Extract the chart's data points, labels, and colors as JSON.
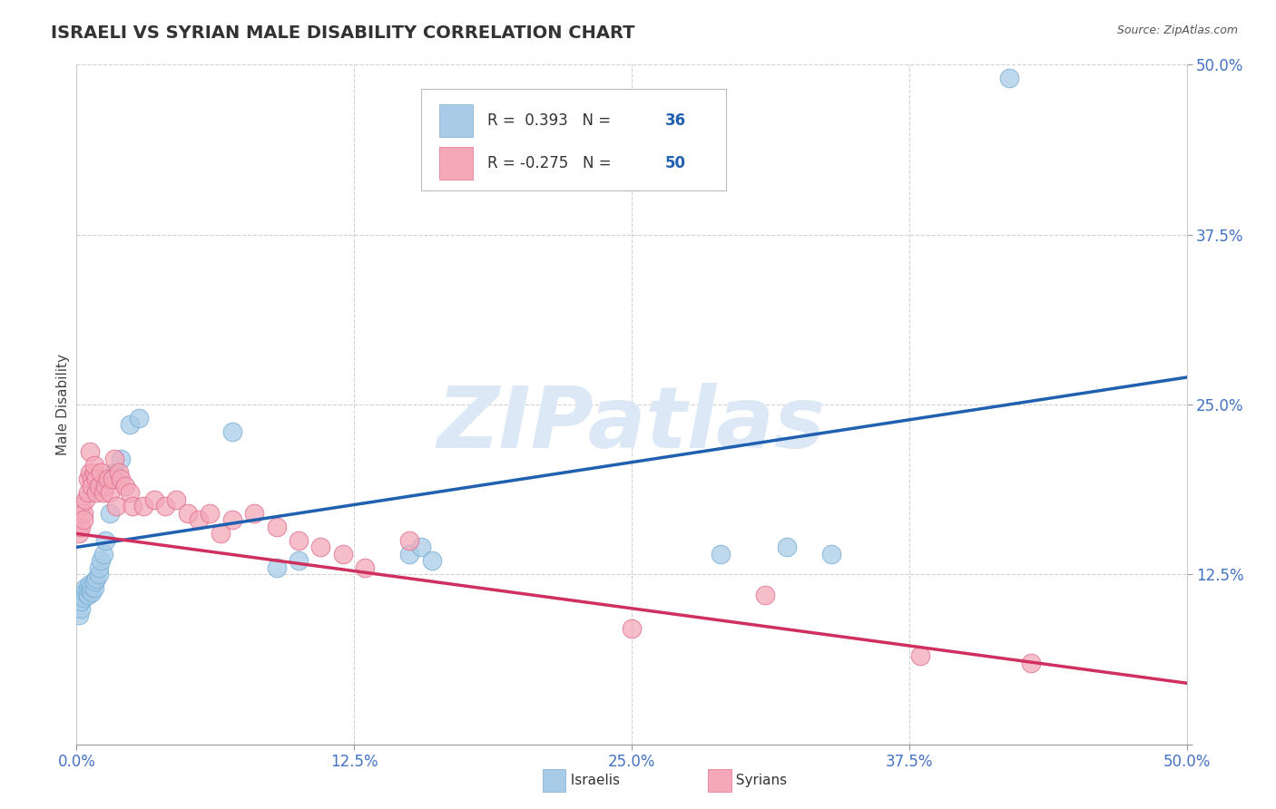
{
  "title": "ISRAELI VS SYRIAN MALE DISABILITY CORRELATION CHART",
  "source": "Source: ZipAtlas.com",
  "ylabel": "Male Disability",
  "xlim": [
    0.0,
    0.5
  ],
  "ylim": [
    0.0,
    0.5
  ],
  "ytick_positions": [
    0.0,
    0.125,
    0.25,
    0.375,
    0.5
  ],
  "xtick_positions": [
    0.0,
    0.125,
    0.25,
    0.375,
    0.5
  ],
  "R_israeli": 0.393,
  "N_israeli": 36,
  "R_syrian": -0.275,
  "N_syrian": 50,
  "israeli_color": "#a8cce8",
  "israeli_edge_color": "#7aaed4",
  "syrian_color": "#f4a8b8",
  "syrian_edge_color": "#e07090",
  "trendline_israeli_color": "#2060b0",
  "trendline_syrian_color": "#d03060",
  "background_color": "#ffffff",
  "watermark_text": "ZIPatlas",
  "watermark_color": "#dce8f5",
  "legend_R_color": "#333333",
  "legend_N_color": "#2060b0",
  "tick_color": "#4472c4",
  "title_color": "#333333",
  "source_color": "#555555",
  "grid_color": "#cccccc",
  "israeli_x": [
    0.001,
    0.002,
    0.002,
    0.003,
    0.003,
    0.004,
    0.004,
    0.005,
    0.005,
    0.006,
    0.006,
    0.007,
    0.007,
    0.008,
    0.008,
    0.009,
    0.01,
    0.01,
    0.011,
    0.012,
    0.013,
    0.015,
    0.017,
    0.02,
    0.024,
    0.028,
    0.07,
    0.09,
    0.1,
    0.15,
    0.155,
    0.16,
    0.29,
    0.32,
    0.34,
    0.42
  ],
  "israeli_y": [
    0.095,
    0.1,
    0.105,
    0.11,
    0.108,
    0.112,
    0.115,
    0.11,
    0.115,
    0.113,
    0.118,
    0.112,
    0.116,
    0.115,
    0.12,
    0.122,
    0.125,
    0.13,
    0.135,
    0.14,
    0.15,
    0.17,
    0.2,
    0.21,
    0.235,
    0.24,
    0.23,
    0.13,
    0.135,
    0.14,
    0.145,
    0.135,
    0.14,
    0.145,
    0.14,
    0.49
  ],
  "syrian_x": [
    0.001,
    0.002,
    0.002,
    0.003,
    0.003,
    0.004,
    0.005,
    0.005,
    0.006,
    0.006,
    0.007,
    0.007,
    0.008,
    0.008,
    0.009,
    0.009,
    0.01,
    0.011,
    0.012,
    0.013,
    0.014,
    0.015,
    0.016,
    0.017,
    0.018,
    0.019,
    0.02,
    0.022,
    0.024,
    0.025,
    0.03,
    0.035,
    0.04,
    0.045,
    0.05,
    0.055,
    0.06,
    0.065,
    0.07,
    0.08,
    0.09,
    0.1,
    0.11,
    0.12,
    0.13,
    0.15,
    0.25,
    0.31,
    0.38,
    0.43
  ],
  "syrian_y": [
    0.155,
    0.175,
    0.16,
    0.17,
    0.165,
    0.18,
    0.195,
    0.185,
    0.2,
    0.215,
    0.195,
    0.19,
    0.2,
    0.205,
    0.185,
    0.195,
    0.19,
    0.2,
    0.185,
    0.19,
    0.195,
    0.185,
    0.195,
    0.21,
    0.175,
    0.2,
    0.195,
    0.19,
    0.185,
    0.175,
    0.175,
    0.18,
    0.175,
    0.18,
    0.17,
    0.165,
    0.17,
    0.155,
    0.165,
    0.17,
    0.16,
    0.15,
    0.145,
    0.14,
    0.13,
    0.15,
    0.085,
    0.11,
    0.065,
    0.06
  ]
}
